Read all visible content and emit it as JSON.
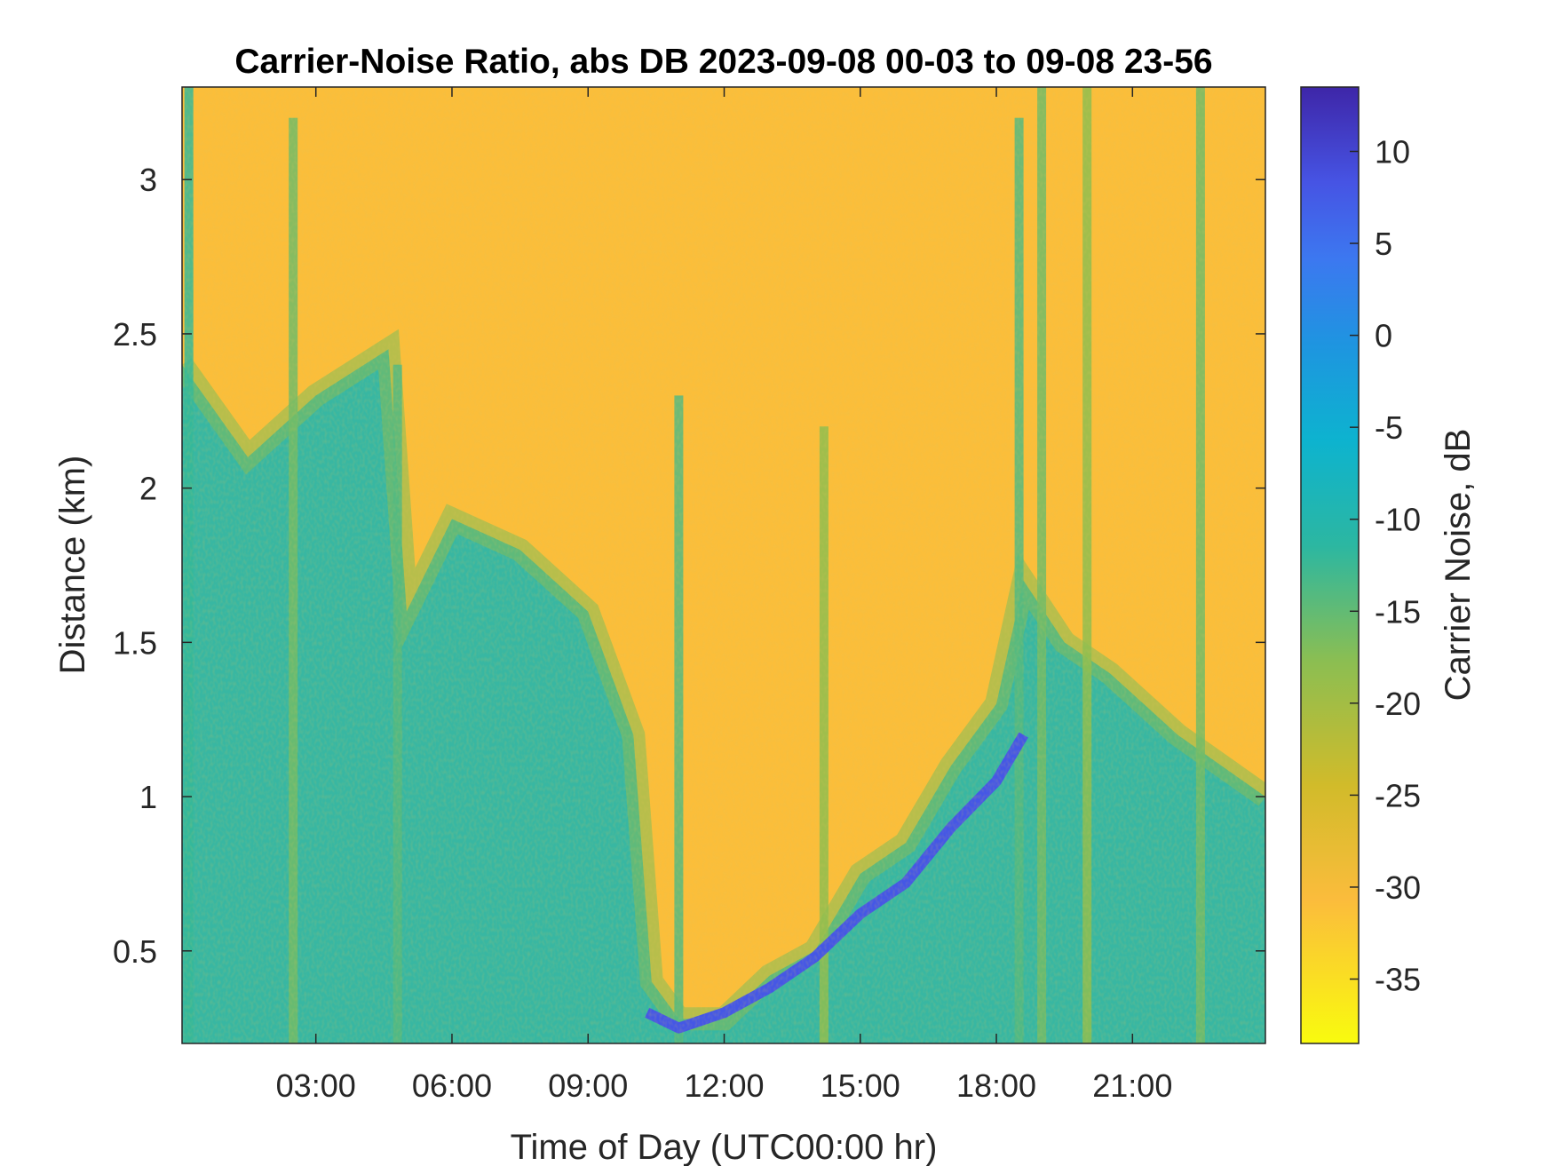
{
  "chart_data": {
    "type": "heatmap",
    "title": "Carrier-Noise Ratio, abs DB 2023-09-08 00-03 to 09-08 23-56",
    "xlabel": "Time of Day (UTC00:00 hr)",
    "ylabel": "Distance (km)",
    "colorbar_label": "Carrier Noise, dB",
    "colormap": "parula-reversed",
    "xlim": [
      0.05,
      23.93
    ],
    "ylim": [
      0.2,
      3.3
    ],
    "clim": [
      -38.5,
      13.5
    ],
    "x_ticks": [
      3,
      6,
      9,
      12,
      15,
      18,
      21
    ],
    "x_tick_labels": [
      "03:00",
      "06:00",
      "09:00",
      "12:00",
      "15:00",
      "18:00",
      "21:00"
    ],
    "y_ticks": [
      0.5,
      1,
      1.5,
      2,
      2.5,
      3
    ],
    "y_tick_labels": [
      "0.5",
      "1",
      "1.5",
      "2",
      "2.5",
      "3"
    ],
    "c_ticks": [
      -35,
      -30,
      -25,
      -20,
      -15,
      -10,
      -5,
      0,
      5,
      10
    ],
    "c_tick_labels": [
      "-35",
      "-30",
      "-25",
      "-20",
      "-15",
      "-10",
      "-5",
      "0",
      "5",
      "10"
    ],
    "background_db": -31,
    "boundary_layer_top_km": [
      {
        "t": 0.05,
        "h": 2.4
      },
      {
        "t": 1.5,
        "h": 2.1
      },
      {
        "t": 3.0,
        "h": 2.3
      },
      {
        "t": 4.6,
        "h": 2.45
      },
      {
        "t": 5.0,
        "h": 1.6
      },
      {
        "t": 6.0,
        "h": 1.9
      },
      {
        "t": 7.5,
        "h": 1.8
      },
      {
        "t": 9.0,
        "h": 1.6
      },
      {
        "t": 10.0,
        "h": 1.2
      },
      {
        "t": 10.4,
        "h": 0.4
      },
      {
        "t": 11.0,
        "h": 0.28
      },
      {
        "t": 12.0,
        "h": 0.28
      },
      {
        "t": 13.0,
        "h": 0.42
      },
      {
        "t": 14.0,
        "h": 0.5
      },
      {
        "t": 15.0,
        "h": 0.75
      },
      {
        "t": 16.0,
        "h": 0.85
      },
      {
        "t": 17.0,
        "h": 1.1
      },
      {
        "t": 18.0,
        "h": 1.3
      },
      {
        "t": 18.6,
        "h": 1.7
      },
      {
        "t": 19.5,
        "h": 1.5
      },
      {
        "t": 20.5,
        "h": 1.4
      },
      {
        "t": 22.0,
        "h": 1.2
      },
      {
        "t": 23.93,
        "h": 1.0
      }
    ],
    "strong_return_layer_db": 8,
    "strong_return_layer_km": [
      {
        "t": 10.3,
        "h": 0.3
      },
      {
        "t": 11.0,
        "h": 0.25
      },
      {
        "t": 12.0,
        "h": 0.3
      },
      {
        "t": 13.0,
        "h": 0.38
      },
      {
        "t": 14.0,
        "h": 0.48
      },
      {
        "t": 15.0,
        "h": 0.62
      },
      {
        "t": 16.0,
        "h": 0.72
      },
      {
        "t": 17.0,
        "h": 0.9
      },
      {
        "t": 18.0,
        "h": 1.05
      },
      {
        "t": 18.6,
        "h": 1.2
      }
    ],
    "vertical_plumes": [
      {
        "t": 0.2,
        "top_km": 3.3,
        "db": -12
      },
      {
        "t": 2.5,
        "top_km": 3.2,
        "db": -16
      },
      {
        "t": 4.8,
        "top_km": 2.4,
        "db": -14
      },
      {
        "t": 11.0,
        "top_km": 2.3,
        "db": -14
      },
      {
        "t": 14.2,
        "top_km": 2.2,
        "db": -18
      },
      {
        "t": 18.5,
        "top_km": 3.2,
        "db": -14
      },
      {
        "t": 19.0,
        "top_km": 3.3,
        "db": -16
      },
      {
        "t": 20.0,
        "top_km": 3.3,
        "db": -18
      },
      {
        "t": 22.5,
        "top_km": 3.3,
        "db": -16
      }
    ]
  }
}
